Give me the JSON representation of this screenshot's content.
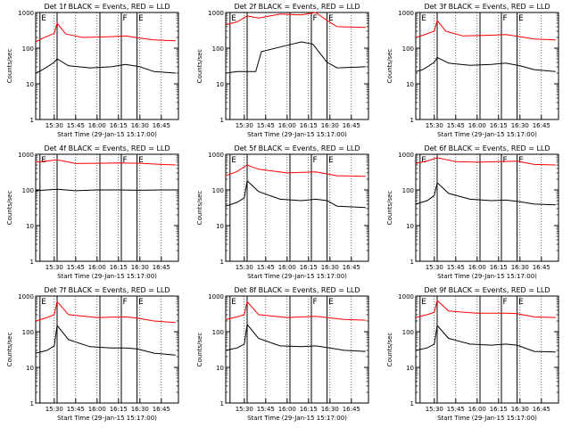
{
  "colors": {
    "background": "#ffffff",
    "axis": "#000000",
    "events": "#000000",
    "lld": "#ff0000"
  },
  "chart_data": [
    {
      "type": "line",
      "title": "Det 1f BLACK = Events, RED = LLD",
      "xlabel": "Start Time (29-Jan-15 15:17:00)",
      "ylabel": "Counts/sec",
      "y_scale": "log",
      "ylim": [
        1,
        1000
      ],
      "xlim": [
        "15:17",
        "16:57"
      ],
      "x_ticks": [
        "15:30",
        "15:45",
        "16:00",
        "16:15",
        "16:30",
        "16:45"
      ],
      "y_ticks": [
        "1",
        "10",
        "100",
        "1000"
      ],
      "markers": [
        {
          "label": "E",
          "time": "15:20"
        },
        {
          "label": "",
          "time": "15:32"
        },
        {
          "label": "",
          "time": "16:02"
        },
        {
          "label": "F",
          "time": "16:17"
        },
        {
          "label": "E",
          "time": "16:28"
        }
      ],
      "series": [
        {
          "color": "#ff0000",
          "x": [
            "15:17",
            "15:22",
            "15:30",
            "15:32",
            "15:38",
            "15:50",
            "16:10",
            "16:20",
            "16:30",
            "16:40",
            "16:55"
          ],
          "values": [
            150,
            190,
            260,
            500,
            250,
            200,
            210,
            220,
            190,
            170,
            160
          ]
        },
        {
          "color": "#000000",
          "x": [
            "15:17",
            "15:22",
            "15:30",
            "15:32",
            "15:40",
            "15:55",
            "16:10",
            "16:20",
            "16:30",
            "16:40",
            "16:55"
          ],
          "values": [
            20,
            25,
            40,
            50,
            32,
            28,
            30,
            35,
            30,
            22,
            20
          ]
        }
      ]
    },
    {
      "type": "line",
      "title": "Det 2f BLACK = Events, RED = LLD",
      "xlabel": "Start Time (29-Jan-15 15:17:00)",
      "ylabel": "Counts/sec",
      "y_scale": "log",
      "ylim": [
        1,
        1000
      ],
      "xlim": [
        "15:17",
        "16:57"
      ],
      "x_ticks": [
        "15:30",
        "15:45",
        "16:00",
        "16:15",
        "16:30",
        "16:45"
      ],
      "y_ticks": [
        "1",
        "10",
        "100",
        "1000"
      ],
      "markers": [
        {
          "label": "E",
          "time": "15:20"
        },
        {
          "label": "",
          "time": "15:32"
        },
        {
          "label": "",
          "time": "16:02"
        },
        {
          "label": "F",
          "time": "16:17"
        },
        {
          "label": "E",
          "time": "16:28"
        }
      ],
      "series": [
        {
          "color": "#ff0000",
          "x": [
            "15:17",
            "15:25",
            "15:32",
            "15:40",
            "15:55",
            "16:10",
            "16:20",
            "16:28",
            "16:35",
            "16:55"
          ],
          "values": [
            450,
            550,
            800,
            700,
            900,
            850,
            1000,
            600,
            400,
            380
          ]
        },
        {
          "color": "#000000",
          "x": [
            "15:17",
            "15:25",
            "15:32",
            "15:38",
            "15:42",
            "16:00",
            "16:10",
            "16:18",
            "16:28",
            "16:35",
            "16:55"
          ],
          "values": [
            20,
            22,
            22,
            22,
            80,
            120,
            150,
            130,
            40,
            28,
            30
          ]
        }
      ]
    },
    {
      "type": "line",
      "title": "Det 3f BLACK = Events, RED = LLD",
      "xlabel": "Start Time (29-Jan-15 15:17:00)",
      "ylabel": "Counts/sec",
      "y_scale": "log",
      "ylim": [
        1,
        1000
      ],
      "xlim": [
        "15:17",
        "16:57"
      ],
      "x_ticks": [
        "15:30",
        "15:45",
        "16:00",
        "16:15",
        "16:30",
        "16:45"
      ],
      "y_ticks": [
        "1",
        "10",
        "100",
        "1000"
      ],
      "markers": [
        {
          "label": "E",
          "time": "15:20"
        },
        {
          "label": "",
          "time": "15:32"
        },
        {
          "label": "",
          "time": "16:02"
        },
        {
          "label": "F",
          "time": "16:17"
        },
        {
          "label": "E",
          "time": "16:28"
        }
      ],
      "series": [
        {
          "color": "#ff0000",
          "x": [
            "15:17",
            "15:22",
            "15:30",
            "15:32",
            "15:38",
            "15:50",
            "16:10",
            "16:20",
            "16:30",
            "16:40",
            "16:55"
          ],
          "values": [
            200,
            230,
            300,
            600,
            300,
            220,
            230,
            240,
            210,
            180,
            170
          ]
        },
        {
          "color": "#000000",
          "x": [
            "15:17",
            "15:22",
            "15:30",
            "15:32",
            "15:40",
            "15:55",
            "16:10",
            "16:20",
            "16:30",
            "16:40",
            "16:55"
          ],
          "values": [
            22,
            25,
            40,
            55,
            38,
            33,
            35,
            38,
            32,
            25,
            22
          ]
        }
      ]
    },
    {
      "type": "line",
      "title": "Det 4f BLACK = Events, RED = LLD",
      "xlabel": "Start Time (29-Jan-15 15:17:00)",
      "ylabel": "Counts/sec",
      "y_scale": "log",
      "ylim": [
        1,
        1000
      ],
      "xlim": [
        "15:17",
        "16:57"
      ],
      "x_ticks": [
        "15:30",
        "15:45",
        "16:00",
        "16:15",
        "16:30",
        "16:45"
      ],
      "y_ticks": [
        "1",
        "10",
        "100",
        "1000"
      ],
      "markers": [
        {
          "label": "E",
          "time": "15:20"
        },
        {
          "label": "",
          "time": "15:32"
        },
        {
          "label": "",
          "time": "16:02"
        },
        {
          "label": "F",
          "time": "16:17"
        },
        {
          "label": "E",
          "time": "16:28"
        }
      ],
      "series": [
        {
          "color": "#ff0000",
          "x": [
            "15:17",
            "15:25",
            "15:32",
            "15:45",
            "16:00",
            "16:15",
            "16:30",
            "16:45",
            "16:55"
          ],
          "values": [
            600,
            650,
            700,
            550,
            560,
            570,
            560,
            520,
            500
          ]
        },
        {
          "color": "#000000",
          "x": [
            "15:17",
            "15:25",
            "15:32",
            "15:45",
            "16:00",
            "16:15",
            "16:30",
            "16:45",
            "16:55"
          ],
          "values": [
            95,
            100,
            105,
            95,
            100,
            100,
            98,
            100,
            100
          ]
        }
      ]
    },
    {
      "type": "line",
      "title": "Det 5f BLACK = Events, RED = LLD",
      "xlabel": "Start Time (29-Jan-15 15:17:00)",
      "ylabel": "Counts/sec",
      "y_scale": "log",
      "ylim": [
        1,
        1000
      ],
      "xlim": [
        "15:17",
        "16:57"
      ],
      "x_ticks": [
        "15:30",
        "15:45",
        "16:00",
        "16:15",
        "16:30",
        "16:45"
      ],
      "y_ticks": [
        "1",
        "10",
        "100",
        "1000"
      ],
      "markers": [
        {
          "label": "E",
          "time": "15:20"
        },
        {
          "label": "",
          "time": "15:32"
        },
        {
          "label": "",
          "time": "16:02"
        },
        {
          "label": "F",
          "time": "16:17"
        },
        {
          "label": "E",
          "time": "16:28"
        }
      ],
      "series": [
        {
          "color": "#ff0000",
          "x": [
            "15:17",
            "15:25",
            "15:32",
            "15:40",
            "16:00",
            "16:20",
            "16:28",
            "16:35",
            "16:55"
          ],
          "values": [
            250,
            330,
            500,
            380,
            300,
            320,
            280,
            250,
            240
          ]
        },
        {
          "color": "#000000",
          "x": [
            "15:17",
            "15:25",
            "15:30",
            "15:32",
            "15:40",
            "15:55",
            "16:10",
            "16:20",
            "16:28",
            "16:35",
            "16:55"
          ],
          "values": [
            35,
            45,
            60,
            180,
            90,
            55,
            50,
            55,
            50,
            35,
            32
          ]
        }
      ]
    },
    {
      "type": "line",
      "title": "Det 6f BLACK = Events, RED = LLD",
      "xlabel": "Start Time (29-Jan-15 15:17:00)",
      "ylabel": "Counts/sec",
      "y_scale": "log",
      "ylim": [
        1,
        1000
      ],
      "xlim": [
        "15:17",
        "16:57"
      ],
      "x_ticks": [
        "15:30",
        "15:45",
        "16:00",
        "16:15",
        "16:30",
        "16:45"
      ],
      "y_ticks": [
        "1",
        "10",
        "100",
        "1000"
      ],
      "markers": [
        {
          "label": "E",
          "time": "15:20"
        },
        {
          "label": "",
          "time": "15:32"
        },
        {
          "label": "",
          "time": "16:02"
        },
        {
          "label": "F",
          "time": "16:17"
        },
        {
          "label": "E",
          "time": "16:28"
        }
      ],
      "series": [
        {
          "color": "#ff0000",
          "x": [
            "15:17",
            "15:25",
            "15:32",
            "15:45",
            "16:00",
            "16:15",
            "16:28",
            "16:40",
            "16:55"
          ],
          "values": [
            550,
            650,
            800,
            620,
            600,
            620,
            640,
            520,
            500
          ]
        },
        {
          "color": "#000000",
          "x": [
            "15:17",
            "15:25",
            "15:30",
            "15:32",
            "15:40",
            "15:55",
            "16:10",
            "16:20",
            "16:28",
            "16:40",
            "16:55"
          ],
          "values": [
            40,
            50,
            70,
            160,
            80,
            55,
            50,
            52,
            48,
            40,
            38
          ]
        }
      ]
    },
    {
      "type": "line",
      "title": "Det 7f BLACK = Events, RED = LLD",
      "xlabel": "Start Time (29-Jan-15 15:17:00)",
      "ylabel": "Counts/sec",
      "y_scale": "log",
      "ylim": [
        1,
        1000
      ],
      "xlim": [
        "15:17",
        "16:57"
      ],
      "x_ticks": [
        "15:30",
        "15:45",
        "16:00",
        "16:15",
        "16:30",
        "16:45"
      ],
      "y_ticks": [
        "1",
        "10",
        "100",
        "1000"
      ],
      "markers": [
        {
          "label": "E",
          "time": "15:20"
        },
        {
          "label": "",
          "time": "15:32"
        },
        {
          "label": "",
          "time": "16:02"
        },
        {
          "label": "F",
          "time": "16:17"
        },
        {
          "label": "E",
          "time": "16:28"
        }
      ],
      "series": [
        {
          "color": "#ff0000",
          "x": [
            "15:17",
            "15:25",
            "15:30",
            "15:32",
            "15:40",
            "16:00",
            "16:20",
            "16:28",
            "16:40",
            "16:55"
          ],
          "values": [
            200,
            250,
            300,
            700,
            300,
            250,
            260,
            240,
            200,
            180
          ]
        },
        {
          "color": "#000000",
          "x": [
            "15:17",
            "15:25",
            "15:30",
            "15:32",
            "15:40",
            "15:55",
            "16:10",
            "16:20",
            "16:28",
            "16:40",
            "16:55"
          ],
          "values": [
            25,
            30,
            40,
            150,
            60,
            38,
            35,
            35,
            33,
            25,
            22
          ]
        }
      ]
    },
    {
      "type": "line",
      "title": "Det 8f BLACK = Events, RED = LLD",
      "xlabel": "Start Time (29-Jan-15 15:17:00)",
      "ylabel": "Counts/sec",
      "y_scale": "log",
      "ylim": [
        1,
        1000
      ],
      "xlim": [
        "15:17",
        "16:57"
      ],
      "x_ticks": [
        "15:30",
        "15:45",
        "16:00",
        "16:15",
        "16:30",
        "16:45"
      ],
      "y_ticks": [
        "1",
        "10",
        "100",
        "1000"
      ],
      "markers": [
        {
          "label": "E",
          "time": "15:20"
        },
        {
          "label": "",
          "time": "15:32"
        },
        {
          "label": "",
          "time": "16:02"
        },
        {
          "label": "F",
          "time": "16:17"
        },
        {
          "label": "E",
          "time": "16:28"
        }
      ],
      "series": [
        {
          "color": "#ff0000",
          "x": [
            "15:17",
            "15:25",
            "15:30",
            "15:32",
            "15:40",
            "16:00",
            "16:20",
            "16:28",
            "16:40",
            "16:55"
          ],
          "values": [
            220,
            260,
            300,
            700,
            300,
            250,
            270,
            250,
            220,
            210
          ]
        },
        {
          "color": "#000000",
          "x": [
            "15:17",
            "15:25",
            "15:30",
            "15:32",
            "15:40",
            "15:55",
            "16:10",
            "16:20",
            "16:28",
            "16:40",
            "16:55"
          ],
          "values": [
            30,
            35,
            45,
            160,
            65,
            40,
            38,
            40,
            36,
            30,
            28
          ]
        }
      ]
    },
    {
      "type": "line",
      "title": "Det 9f BLACK = Events, RED = LLD",
      "xlabel": "Start Time (29-Jan-15 15:17:00)",
      "ylabel": "Counts/sec",
      "y_scale": "log",
      "ylim": [
        1,
        1000
      ],
      "xlim": [
        "15:17",
        "16:57"
      ],
      "x_ticks": [
        "15:30",
        "15:45",
        "16:00",
        "16:15",
        "16:30",
        "16:45"
      ],
      "y_ticks": [
        "1",
        "10",
        "100",
        "1000"
      ],
      "markers": [
        {
          "label": "E",
          "time": "15:20"
        },
        {
          "label": "",
          "time": "15:32"
        },
        {
          "label": "",
          "time": "16:02"
        },
        {
          "label": "F",
          "time": "16:17"
        },
        {
          "label": "E",
          "time": "16:28"
        }
      ],
      "series": [
        {
          "color": "#ff0000",
          "x": [
            "15:17",
            "15:25",
            "15:30",
            "15:32",
            "15:40",
            "16:00",
            "16:20",
            "16:28",
            "16:40",
            "16:55"
          ],
          "values": [
            250,
            300,
            350,
            750,
            380,
            330,
            330,
            320,
            260,
            250
          ]
        },
        {
          "color": "#000000",
          "x": [
            "15:17",
            "15:25",
            "15:30",
            "15:32",
            "15:40",
            "15:55",
            "16:10",
            "16:20",
            "16:28",
            "16:40",
            "16:55"
          ],
          "values": [
            30,
            35,
            45,
            150,
            65,
            45,
            42,
            45,
            42,
            28,
            27
          ]
        }
      ]
    }
  ]
}
